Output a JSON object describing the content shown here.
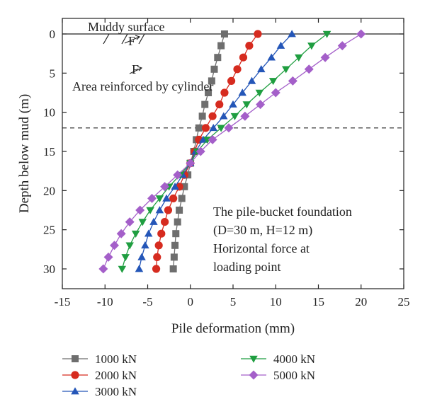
{
  "chart_data": {
    "type": "line",
    "xlabel": "Pile deformation (mm)",
    "ylabel": "Depth below mud (m)",
    "xlim": [
      -15,
      25
    ],
    "ylim": [
      0,
      32
    ],
    "y_inverted": true,
    "x_ticks": [
      -15,
      -10,
      -5,
      0,
      5,
      10,
      15,
      20,
      25
    ],
    "y_ticks": [
      0,
      5,
      10,
      15,
      20,
      25,
      30
    ],
    "grid": false,
    "legend_position": "bottom",
    "reference_lines": {
      "mud_surface_depth": 0,
      "bucket_bottom_depth": 12
    },
    "annotations": {
      "mud_surface": "Muddy surface",
      "reinforced_area": "Area reinforced by cylinder",
      "force_label_1": "F",
      "force_label_2": "F",
      "info_line1": "The pile-bucket foundation",
      "info_line2": "(D=30 m, H=12 m)",
      "info_line3": "Horizontal force at",
      "info_line4": "loading point"
    },
    "series": [
      {
        "name": "1000 kN",
        "color": "#6e6e6e",
        "marker": "square",
        "y": [
          0,
          1.5,
          3,
          4.5,
          6,
          7.5,
          9,
          10.5,
          12,
          13.5,
          15,
          16.5,
          18,
          19.5,
          21,
          22.5,
          24,
          25.5,
          27,
          28.5,
          30
        ],
        "x": [
          4.0,
          3.6,
          3.2,
          2.8,
          2.5,
          2.1,
          1.7,
          1.4,
          1.0,
          0.7,
          0.4,
          0.0,
          -0.3,
          -0.7,
          -1.0,
          -1.3,
          -1.5,
          -1.7,
          -1.8,
          -1.9,
          -2.0
        ]
      },
      {
        "name": "2000 kN",
        "color": "#d62b1f",
        "marker": "circle",
        "y": [
          0,
          1.5,
          3,
          4.5,
          6,
          7.5,
          9,
          10.5,
          12,
          13.5,
          15,
          16.5,
          18,
          19.5,
          21,
          22.5,
          24,
          25.5,
          27,
          28.5,
          30
        ],
        "x": [
          7.9,
          6.9,
          6.2,
          5.5,
          4.8,
          4.0,
          3.4,
          2.6,
          1.8,
          1.0,
          0.5,
          0.0,
          -0.7,
          -1.3,
          -2.0,
          -2.6,
          -3.0,
          -3.4,
          -3.7,
          -3.9,
          -4.0
        ]
      },
      {
        "name": "3000 kN",
        "color": "#2456b8",
        "marker": "triangle-up",
        "y": [
          0,
          1.5,
          3,
          4.5,
          6,
          7.5,
          9,
          10.5,
          12,
          13.5,
          15,
          16.5,
          18,
          19.5,
          21,
          22.5,
          24,
          25.5,
          27,
          28.5,
          30
        ],
        "x": [
          11.9,
          10.6,
          9.5,
          8.3,
          7.2,
          6.1,
          5.0,
          3.9,
          2.7,
          1.5,
          0.6,
          0.0,
          -0.9,
          -1.8,
          -2.8,
          -3.6,
          -4.3,
          -4.9,
          -5.3,
          -5.7,
          -6.0
        ]
      },
      {
        "name": "4000 kN",
        "color": "#1f9e40",
        "marker": "triangle-down",
        "y": [
          0,
          1.5,
          3,
          4.5,
          6,
          7.5,
          9,
          10.5,
          12,
          13.5,
          15,
          16.5,
          18,
          19.5,
          21,
          22.5,
          24,
          25.5,
          27,
          28.5,
          30
        ],
        "x": [
          16.0,
          14.2,
          12.7,
          11.2,
          9.7,
          8.1,
          6.6,
          5.2,
          3.6,
          2.0,
          0.8,
          0.0,
          -1.2,
          -2.5,
          -3.6,
          -4.7,
          -5.6,
          -6.4,
          -7.1,
          -7.6,
          -8.0
        ]
      },
      {
        "name": "5000 kN",
        "color": "#a45fc9",
        "marker": "diamond",
        "y": [
          0,
          1.5,
          3,
          4.5,
          6,
          7.5,
          9,
          10.5,
          12,
          13.5,
          15,
          16.5,
          18,
          19.5,
          21,
          22.5,
          24,
          25.5,
          27,
          28.5,
          30
        ],
        "x": [
          20.0,
          17.8,
          15.8,
          13.9,
          12.0,
          10.0,
          8.2,
          6.4,
          4.5,
          2.6,
          1.2,
          0.0,
          -1.5,
          -3.0,
          -4.5,
          -5.9,
          -7.1,
          -8.1,
          -8.9,
          -9.6,
          -10.2
        ]
      }
    ]
  }
}
